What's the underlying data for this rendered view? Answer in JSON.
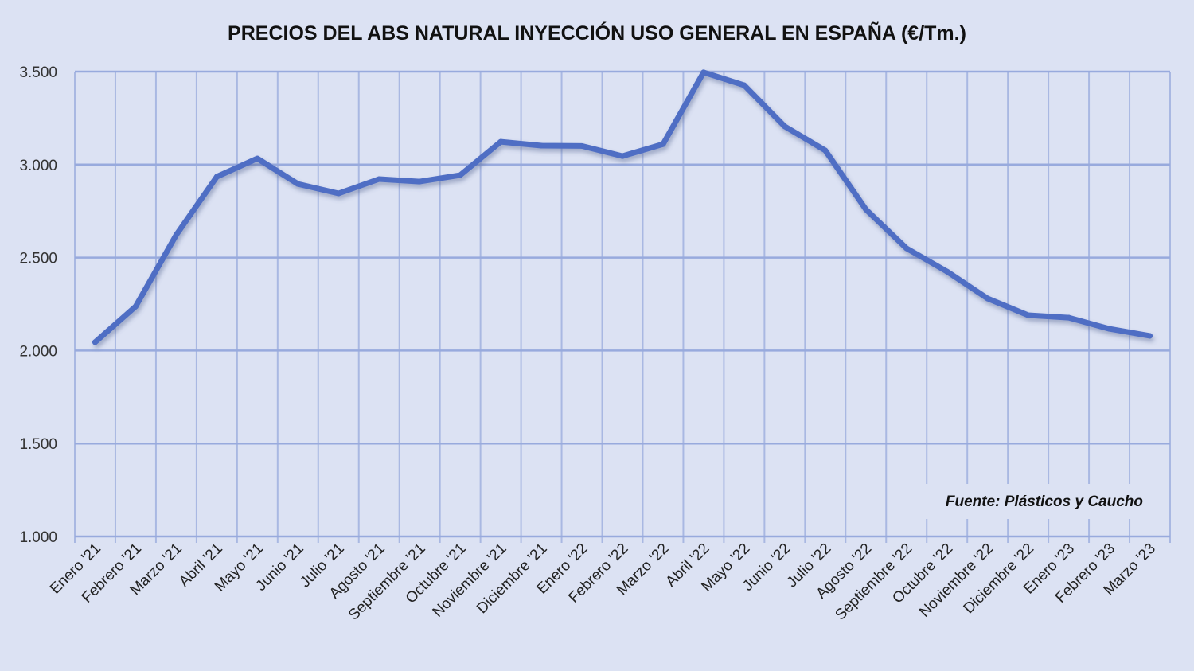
{
  "chart_data": {
    "type": "line",
    "title": "PRECIOS DEL ABS NATURAL INYECCIÓN  USO GENERAL EN ESPAÑA (€/Tm.)",
    "xlabel": "",
    "ylabel": "",
    "ylim": [
      1000,
      3500
    ],
    "yticks": [
      1000,
      1500,
      2000,
      2500,
      3000,
      3500
    ],
    "ytick_labels": [
      "1.000",
      "1.500",
      "2.000",
      "2.500",
      "3.000",
      "3.500"
    ],
    "grid": true,
    "legend": "none",
    "categories": [
      "Enero '21",
      "Febrero '21",
      "Marzo '21",
      "Abril '21",
      "Mayo '21",
      "Junio '21",
      "Julio '21",
      "Agosto '21",
      "Septiembre '21",
      "Octubre '21",
      "Noviembre '21",
      "Diciembre '21",
      "Enero '22",
      "Febrero '22",
      "Marzo '22",
      "Abril '22",
      "Mayo '22",
      "Junio '22",
      "Julio '22",
      "Agosto '22",
      "Septiembre '22",
      "Octubre '22",
      "Noviembre '22",
      "Diciembre '22",
      "Enero '23",
      "Febrero '23",
      "Marzo '23"
    ],
    "series": [
      {
        "name": "ABS natural inyección uso general",
        "color": "#4f6ec4",
        "values": [
          2045,
          2237,
          2622,
          2935,
          3033,
          2896,
          2845,
          2922,
          2909,
          2943,
          3123,
          3102,
          3100,
          3046,
          3110,
          3496,
          3427,
          3205,
          3076,
          2759,
          2550,
          2425,
          2280,
          2190,
          2177,
          2117,
          2079
        ]
      }
    ],
    "annotations": [
      "Fuente: Plásticos y Caucho"
    ]
  }
}
